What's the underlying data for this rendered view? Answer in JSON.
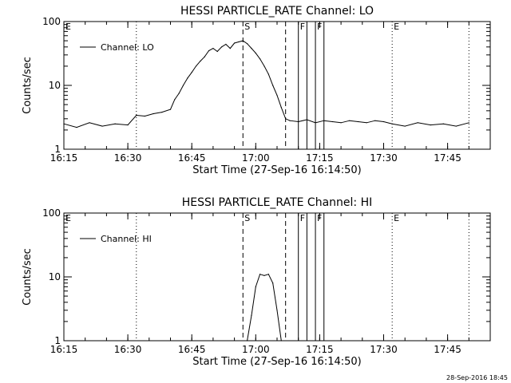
{
  "footer": {
    "timestamp": "28-Sep-2016 18:45"
  },
  "chart_data": [
    {
      "type": "line",
      "title": "HESSI PARTICLE_RATE Channel: LO",
      "xlabel": "Start Time (27-Sep-16 16:14:50)",
      "ylabel": "Counts/sec",
      "yscale": "log",
      "ylim": [
        1,
        100
      ],
      "xlim": [
        "16:15",
        "17:55"
      ],
      "x_ticks": [
        "16:15",
        "16:30",
        "16:45",
        "17:00",
        "17:15",
        "17:30",
        "17:45"
      ],
      "y_ticks": [
        "1",
        "10",
        "100"
      ],
      "legend": {
        "placement": "top-left",
        "entries": [
          "Channel: LO"
        ]
      },
      "grid": false,
      "markers": [
        {
          "label": "E",
          "time": "16:15",
          "style": "dotted"
        },
        {
          "label": "",
          "time": "16:32",
          "style": "dotted"
        },
        {
          "label": "S",
          "time": "16:57",
          "style": "dashed"
        },
        {
          "label": "",
          "time": "17:07",
          "style": "dashed"
        },
        {
          "label": "F",
          "time": "17:10",
          "style": "solid"
        },
        {
          "label": "",
          "time": "17:12",
          "style": "solid"
        },
        {
          "label": "F",
          "time": "17:14",
          "style": "solid"
        },
        {
          "label": "",
          "time": "17:16",
          "style": "solid"
        },
        {
          "label": "E",
          "time": "17:32",
          "style": "dotted"
        },
        {
          "label": "",
          "time": "17:50",
          "style": "dotted"
        }
      ],
      "series": [
        {
          "name": "Channel: LO",
          "x": [
            "16:15",
            "16:18",
            "16:21",
            "16:24",
            "16:27",
            "16:30",
            "16:32",
            "16:34",
            "16:36",
            "16:38",
            "16:40",
            "16:41",
            "16:42",
            "16:43",
            "16:44",
            "16:45",
            "16:46",
            "16:47",
            "16:48",
            "16:49",
            "16:50",
            "16:51",
            "16:52",
            "16:53",
            "16:54",
            "16:55",
            "16:56",
            "16:57",
            "16:58",
            "16:59",
            "17:00",
            "17:01",
            "17:02",
            "17:03",
            "17:04",
            "17:05",
            "17:06",
            "17:07",
            "17:08",
            "17:10",
            "17:12",
            "17:14",
            "17:16",
            "17:18",
            "17:20",
            "17:22",
            "17:24",
            "17:26",
            "17:28",
            "17:30",
            "17:32",
            "17:35",
            "17:38",
            "17:41",
            "17:44",
            "17:47",
            "17:50"
          ],
          "values": [
            2.5,
            2.2,
            2.6,
            2.3,
            2.5,
            2.4,
            3.4,
            3.3,
            3.6,
            3.8,
            4.2,
            6,
            7.5,
            10,
            13,
            16,
            20,
            24,
            28,
            35,
            38,
            34,
            40,
            44,
            38,
            46,
            48,
            50,
            45,
            38,
            32,
            26,
            20,
            15,
            10,
            7,
            4.5,
            3,
            2.8,
            2.7,
            2.9,
            2.6,
            2.8,
            2.7,
            2.6,
            2.8,
            2.7,
            2.6,
            2.8,
            2.7,
            2.5,
            2.3,
            2.6,
            2.4,
            2.5,
            2.3,
            2.6
          ]
        }
      ]
    },
    {
      "type": "line",
      "title": "HESSI PARTICLE_RATE Channel: HI",
      "xlabel": "Start Time (27-Sep-16 16:14:50)",
      "ylabel": "Counts/sec",
      "yscale": "log",
      "ylim": [
        1,
        100
      ],
      "xlim": [
        "16:15",
        "17:55"
      ],
      "x_ticks": [
        "16:15",
        "16:30",
        "16:45",
        "17:00",
        "17:15",
        "17:30",
        "17:45"
      ],
      "y_ticks": [
        "1",
        "10",
        "100"
      ],
      "legend": {
        "placement": "top-left",
        "entries": [
          "Channel: HI"
        ]
      },
      "grid": false,
      "markers": [
        {
          "label": "E",
          "time": "16:15",
          "style": "dotted"
        },
        {
          "label": "",
          "time": "16:32",
          "style": "dotted"
        },
        {
          "label": "S",
          "time": "16:57",
          "style": "dashed"
        },
        {
          "label": "",
          "time": "17:07",
          "style": "dashed"
        },
        {
          "label": "F",
          "time": "17:10",
          "style": "solid"
        },
        {
          "label": "",
          "time": "17:12",
          "style": "solid"
        },
        {
          "label": "F",
          "time": "17:14",
          "style": "solid"
        },
        {
          "label": "",
          "time": "17:16",
          "style": "solid"
        },
        {
          "label": "E",
          "time": "17:32",
          "style": "dotted"
        },
        {
          "label": "",
          "time": "17:50",
          "style": "dotted"
        }
      ],
      "series": [
        {
          "name": "Channel: HI",
          "x": [
            "16:58",
            "16:59",
            "17:00",
            "17:01",
            "17:02",
            "17:03",
            "17:04",
            "17:05",
            "17:06"
          ],
          "values": [
            1,
            2.5,
            7,
            11,
            10.5,
            11,
            8,
            3,
            1
          ]
        }
      ]
    }
  ]
}
